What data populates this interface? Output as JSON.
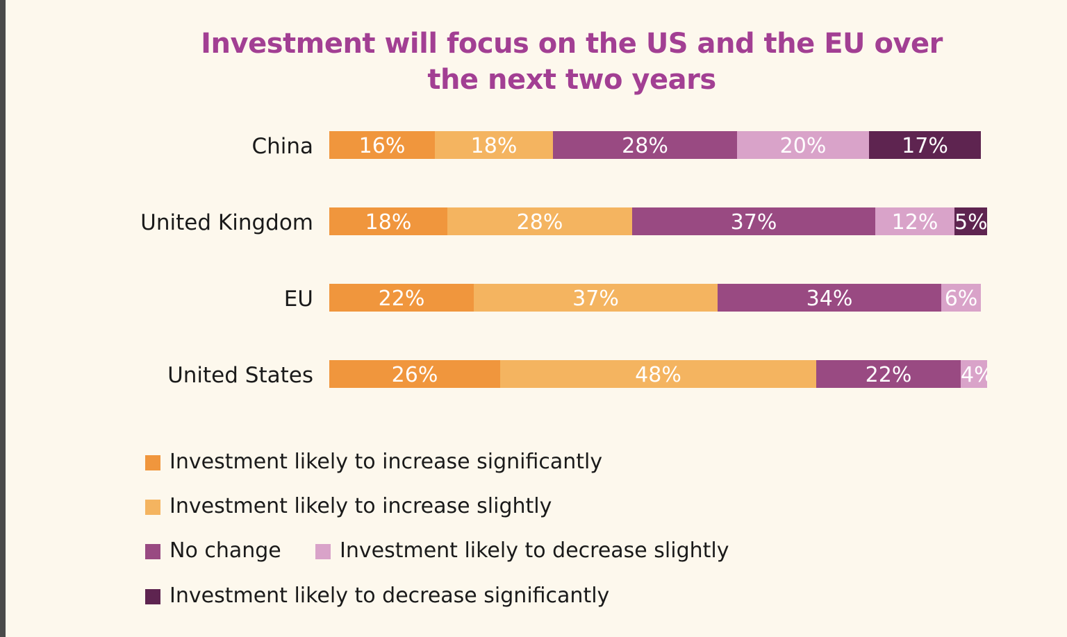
{
  "chart_data": {
    "type": "bar",
    "orientation": "horizontal",
    "stacked": true,
    "title": "Investment will focus on the US and the EU over the next two years",
    "title_lines": [
      "Investment will focus on the US and the EU over",
      "the next two years"
    ],
    "categories": [
      "China",
      "United Kingdom",
      "EU",
      "United States"
    ],
    "series": [
      {
        "name": "Investment likely to increase significantly",
        "color": "#f0963d",
        "values": [
          16,
          18,
          22,
          26
        ],
        "labels": [
          "16%",
          "18%",
          "22%",
          "26%"
        ]
      },
      {
        "name": "Investment likely to increase slightly",
        "color": "#f4b460",
        "values": [
          18,
          28,
          37,
          48
        ],
        "labels": [
          "18%",
          "28%",
          "37%",
          "48%"
        ]
      },
      {
        "name": "No change",
        "color": "#994a82",
        "values": [
          28,
          37,
          34,
          22
        ],
        "labels": [
          "28%",
          "37%",
          "34%",
          "22%"
        ]
      },
      {
        "name": "Investment likely to decrease slightly",
        "color": "#d9a3c9",
        "values": [
          20,
          12,
          6,
          4
        ],
        "labels": [
          "20%",
          "12%",
          "6%",
          "4%"
        ]
      },
      {
        "name": "Investment likely to decrease significantly",
        "color": "#5e2450",
        "values": [
          17,
          5,
          0,
          0
        ],
        "labels": [
          "17%",
          "5%",
          "",
          ""
        ]
      }
    ],
    "legend_position": "bottom",
    "grid": false,
    "xlim": [
      0,
      100
    ]
  },
  "colors": {
    "background": "#fdf8ed",
    "title": "#a23f93"
  }
}
